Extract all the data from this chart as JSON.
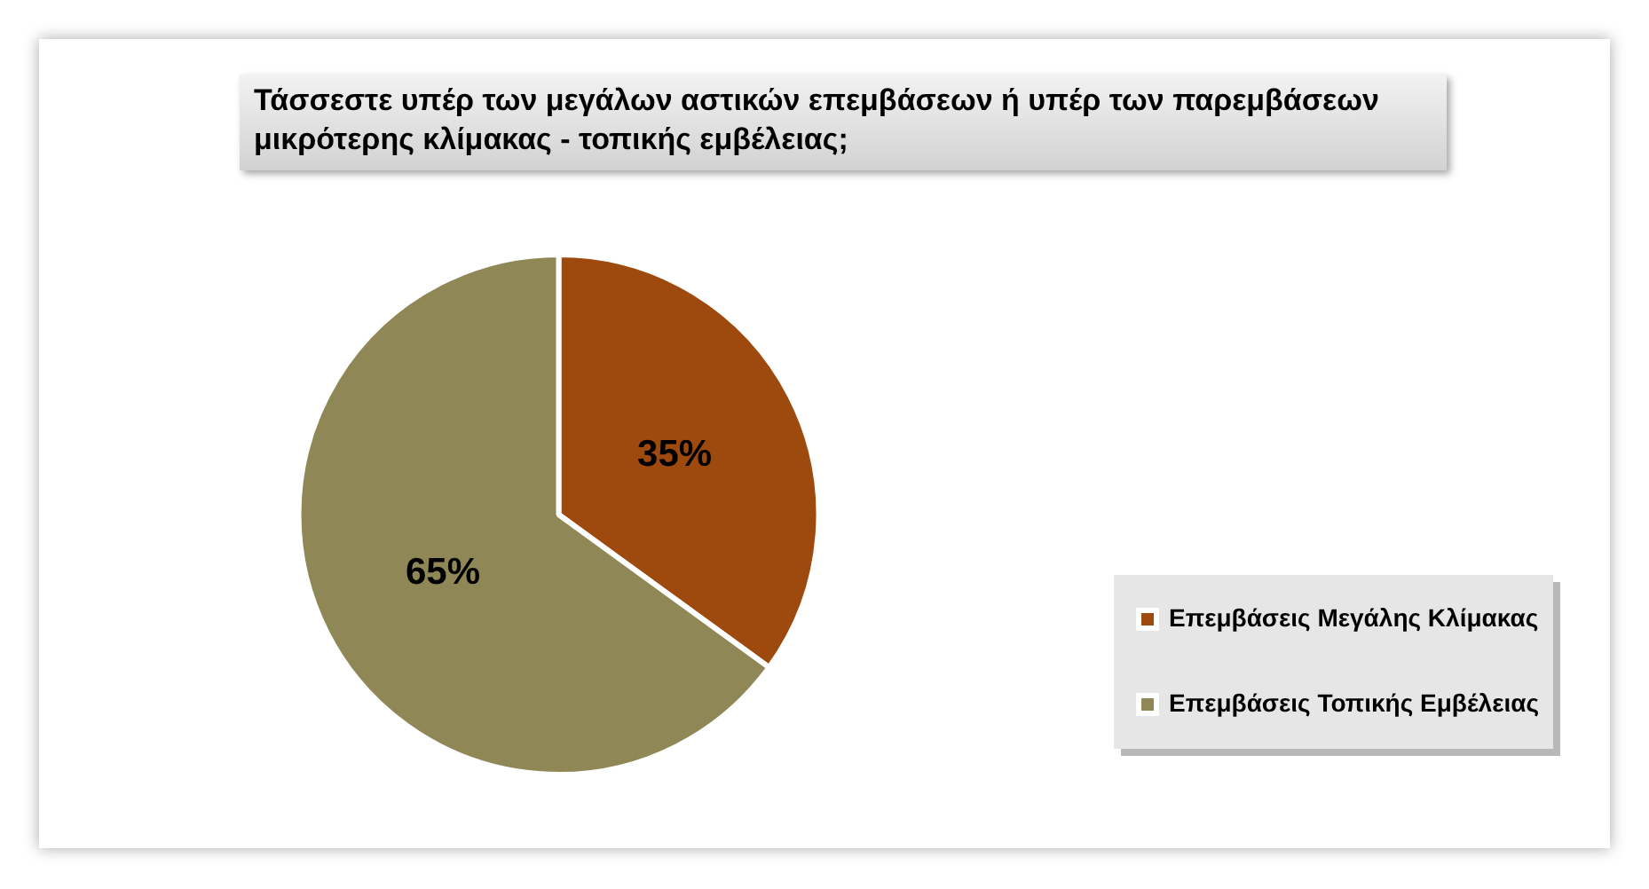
{
  "chart_data": {
    "type": "pie",
    "title": "Τάσσεστε υπέρ των μεγάλων αστικών επεμβάσεων ή υπέρ των παρεμβάσεων μικρότερης κλίμακας - τοπικής εμβέλειας;",
    "categories": [
      "Επεμβάσεις Μεγάλης Κλίμακας",
      "Επεμβάσεις Τοπικής Εμβέλειας"
    ],
    "values": [
      35,
      65
    ],
    "colors": [
      "#9e4a0e",
      "#8f8856"
    ],
    "value_labels": [
      "35%",
      "65%"
    ],
    "legend": "bottom right"
  }
}
